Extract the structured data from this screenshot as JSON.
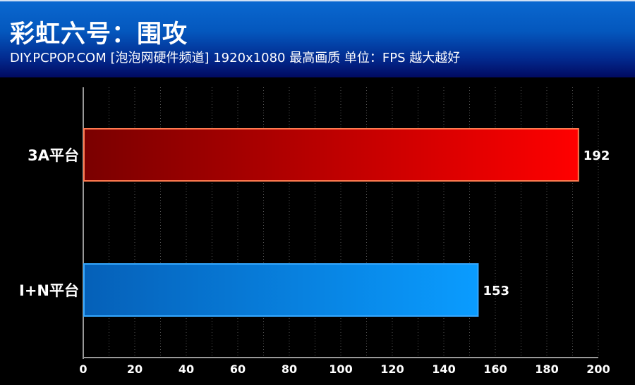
{
  "header": {
    "title": "彩虹六号：围攻",
    "subtitle": "DIY.PCPOP.COM [泡泡网硬件频道] 1920x1080 最高画质 单位：FPS  越大越好"
  },
  "chart_data": {
    "type": "bar",
    "orientation": "horizontal",
    "title": "彩虹六号：围攻",
    "categories": [
      "3A平台",
      "I+N平台"
    ],
    "values": [
      192,
      153
    ],
    "colors": [
      "#e00000",
      "#0a8ff0"
    ],
    "xlim": [
      0,
      200
    ],
    "xticks": [
      0,
      20,
      40,
      60,
      80,
      100,
      120,
      140,
      160,
      180,
      200
    ],
    "xlabel": "",
    "ylabel": "",
    "grid": true
  }
}
